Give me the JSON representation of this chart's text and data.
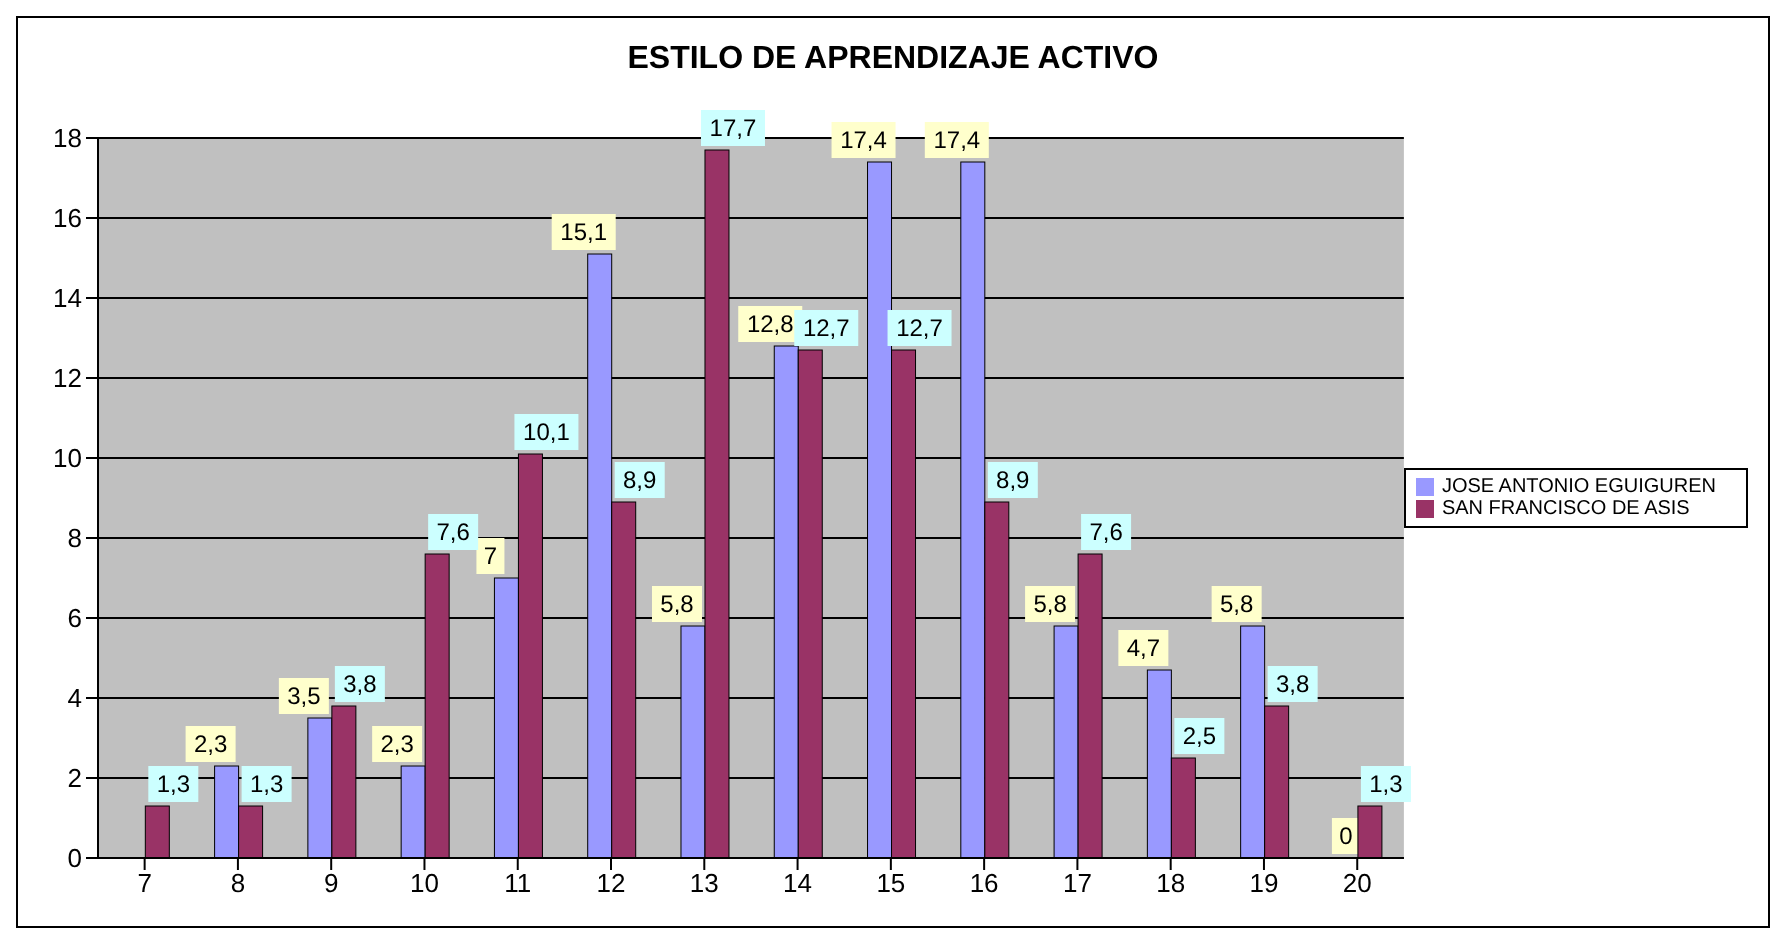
{
  "chart_data": {
    "type": "bar",
    "title": "ESTILO DE APRENDIZAJE ACTIVO",
    "categories": [
      "7",
      "8",
      "9",
      "10",
      "11",
      "12",
      "13",
      "14",
      "15",
      "16",
      "17",
      "18",
      "19",
      "20"
    ],
    "series": [
      {
        "name": "JOSE ANTONIO EGUIGUREN",
        "color": "#9999ff",
        "values": [
          null,
          2.3,
          3.5,
          2.3,
          7,
          15.1,
          5.8,
          12.8,
          17.4,
          17.4,
          5.8,
          4.7,
          5.8,
          0
        ],
        "value_labels": [
          null,
          "2,3",
          "3,5",
          "2,3",
          "7",
          "15,1",
          "5,8",
          "12,8",
          "17,4",
          "17,4",
          "5,8",
          "4,7",
          "5,8",
          "0"
        ]
      },
      {
        "name": "SAN FRANCISCO DE ASIS",
        "color": "#993366",
        "values": [
          1.3,
          1.3,
          3.8,
          7.6,
          10.1,
          8.9,
          17.7,
          12.7,
          12.7,
          8.9,
          7.6,
          2.5,
          3.8,
          1.3
        ],
        "value_labels": [
          "1,3",
          "1,3",
          "3,8",
          "7,6",
          "10,1",
          "8,9",
          "17,7",
          "12,7",
          "12,7",
          "8,9",
          "7,6",
          "2,5",
          "3,8",
          "1,3"
        ]
      }
    ],
    "ylim": [
      0,
      18
    ],
    "yticks": [
      0,
      2,
      4,
      6,
      8,
      10,
      12,
      14,
      16,
      18
    ],
    "grid": "y",
    "legend": "right"
  }
}
